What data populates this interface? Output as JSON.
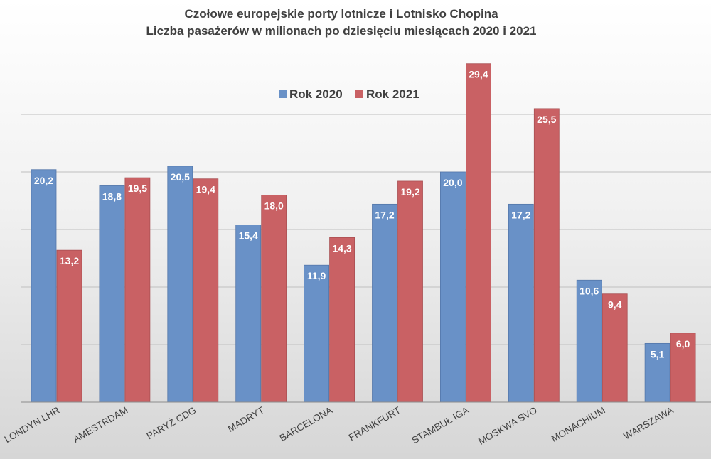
{
  "chart_data": {
    "type": "bar",
    "title": "Czołowe europejskie porty lotnicze i Lotnisko Chopina",
    "subtitle": "Liczba pasażerów w milionach po dziesięciu miesiącach 2020 i 2021",
    "xlabel": "",
    "ylabel": "",
    "ylim": [
      0,
      30
    ],
    "grid": true,
    "legend_position": "top-center",
    "categories": [
      "LONDYN LHR",
      "AMESTRDAM",
      "PARYŻ CDG",
      "MADRYT",
      "BARCELONA",
      "FRANKFURT",
      "STAMBUŁ IGA",
      "MOSKWA SVO",
      "MONACHIUM",
      "WARSZAWA"
    ],
    "series": [
      {
        "name": "Rok 2020",
        "color": "#6991c7",
        "values": [
          20.2,
          18.8,
          20.5,
          15.4,
          11.9,
          17.2,
          20.0,
          17.2,
          10.6,
          5.1
        ],
        "labels": [
          "20,2",
          "18,8",
          "20,5",
          "15,4",
          "11,9",
          "17,2",
          "20,0",
          "17,2",
          "10,6",
          "5,1"
        ]
      },
      {
        "name": "Rok 2021",
        "color": "#c96164",
        "values": [
          13.2,
          19.5,
          19.4,
          18.0,
          14.3,
          19.2,
          29.4,
          25.5,
          9.4,
          6.0
        ],
        "labels": [
          "13,2",
          "19,5",
          "19,4",
          "18,0",
          "14,3",
          "19,2",
          "29,4",
          "25,5",
          "9,4",
          "6,0"
        ]
      }
    ]
  }
}
